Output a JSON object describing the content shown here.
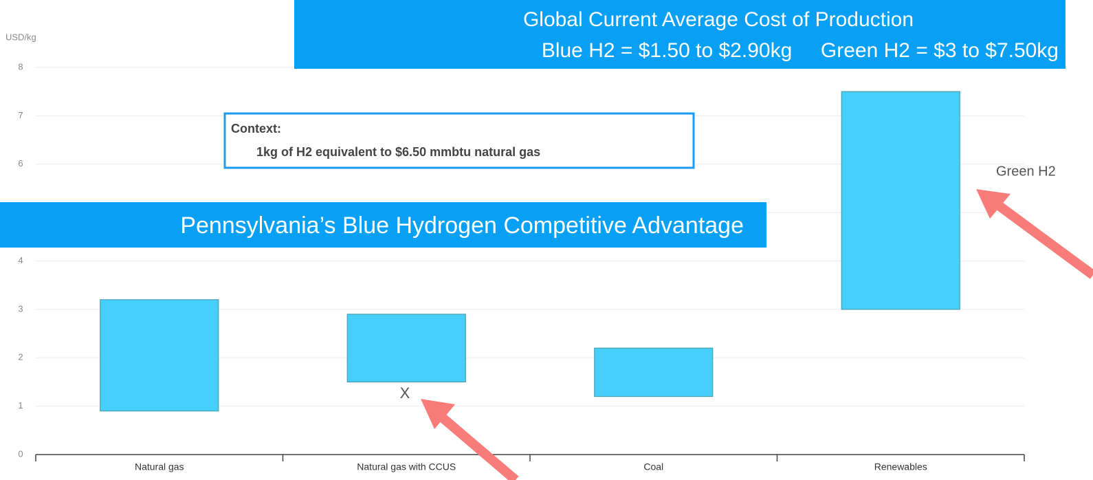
{
  "chart_data": {
    "type": "range_bar",
    "title": "Global Current Average Cost of Production",
    "subtitle": "Blue H2 = $1.50 to $2.90kg     Green H2 = $3 to $7.50kg",
    "y_label": "USD/kg",
    "banner": "Pennsylvania’s Blue Hydrogen Competitive Advantage",
    "context_title": "Context:",
    "context_text": "1kg of H2 equivalent to $6.50 mmbtu natural gas",
    "annotations": [
      "Green H2",
      "X"
    ],
    "categories": [
      "Natural gas",
      "Natural gas with CCUS",
      "Coal",
      "Renewables"
    ],
    "low": [
      0.9,
      1.5,
      1.2,
      3.0
    ],
    "high": [
      3.2,
      2.9,
      2.2,
      7.5
    ],
    "color": "#46cffb",
    "ylim": [
      0,
      8
    ],
    "yticks": [
      0,
      1,
      2,
      3,
      4,
      5,
      6,
      7,
      8
    ],
    "grid": true
  }
}
